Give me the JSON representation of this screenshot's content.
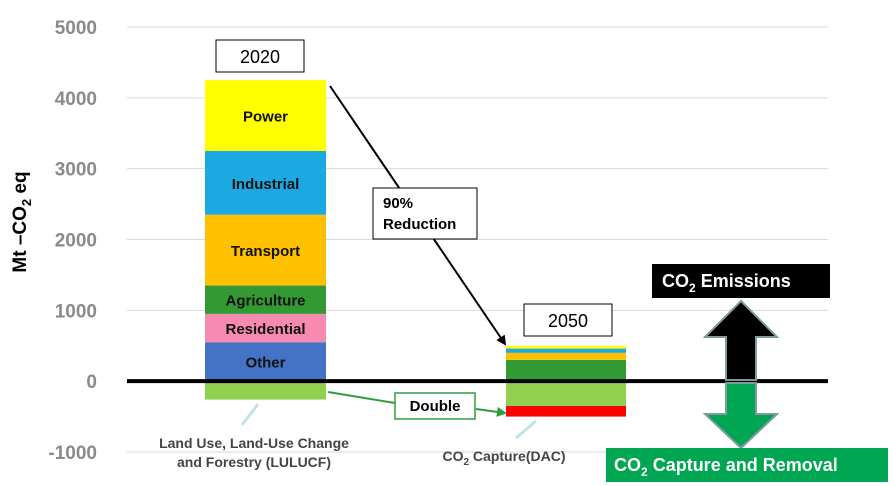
{
  "chart_data": {
    "type": "bar",
    "stacked": true,
    "ylabel": "Mt –CO2 eq",
    "ylabel_parts": {
      "pre": "Mt –CO",
      "sub": "2",
      "post": " eq"
    },
    "ylim": [
      -1000,
      5000
    ],
    "yticks": [
      5000,
      4000,
      3000,
      2000,
      1000,
      0,
      -1000
    ],
    "categories": [
      "2020",
      "2050"
    ],
    "bars": [
      {
        "name": "2020",
        "segments": [
          {
            "label": "Other",
            "value": 550,
            "color": "#4472C4"
          },
          {
            "label": "Residential",
            "value": 400,
            "color": "#F78AB0"
          },
          {
            "label": "Agriculture",
            "value": 400,
            "color": "#339933"
          },
          {
            "label": "Transport",
            "value": 1000,
            "color": "#FFC000"
          },
          {
            "label": "Industrial",
            "value": 900,
            "color": "#1CA8E0"
          },
          {
            "label": "Power",
            "value": 1000,
            "color": "#FFFF00"
          }
        ],
        "negative": [
          {
            "label": "Land Use, Land-Use Change and Forestry (LULUCF)",
            "value": -260,
            "color": "#92D050"
          }
        ]
      },
      {
        "name": "2050",
        "segments": [
          {
            "label": "Other",
            "value": 0,
            "color": "#4472C4"
          },
          {
            "label": "Residential",
            "value": 0,
            "color": "#F78AB0"
          },
          {
            "label": "Agriculture",
            "value": 300,
            "color": "#339933"
          },
          {
            "label": "Transport",
            "value": 100,
            "color": "#FFC000"
          },
          {
            "label": "Industrial",
            "value": 60,
            "color": "#1CA8E0"
          },
          {
            "label": "Power",
            "value": 40,
            "color": "#FFFF00"
          }
        ],
        "negative": [
          {
            "label": "LULUCF",
            "value": -350,
            "color": "#92D050"
          },
          {
            "label": "CO2 Capture (DAC)",
            "value": -150,
            "color": "#FF0000"
          }
        ]
      }
    ],
    "annotations": {
      "year_2020": "2020",
      "year_2050": "2050",
      "reduction_line1": "90%",
      "reduction_line2": "Reduction",
      "double": "Double",
      "lulucf_line1": "Land Use, Land-Use Change",
      "lulucf_line2": "and Forestry (LULUCF)",
      "dac_pre": "CO",
      "dac_sub": "2",
      "dac_post": " Capture(DAC)"
    },
    "legend": {
      "emissions": {
        "pre": "CO",
        "sub": "2",
        "post": " Emissions"
      },
      "capture": {
        "pre": "CO",
        "sub": "2",
        "post": " Capture and Removal"
      }
    }
  },
  "colors": {
    "axis": "#000000",
    "grid": "#d9d9d9",
    "tick_text": "#8a8a8a",
    "emissions_arrow": "#000000",
    "capture_arrow": "#00A651",
    "legend_emissions_bg": "#000000",
    "legend_capture_bg": "#00A651",
    "double_line": "#2E9E3E",
    "reduction_line": "#000000",
    "pointer": "#BFE3E8"
  }
}
